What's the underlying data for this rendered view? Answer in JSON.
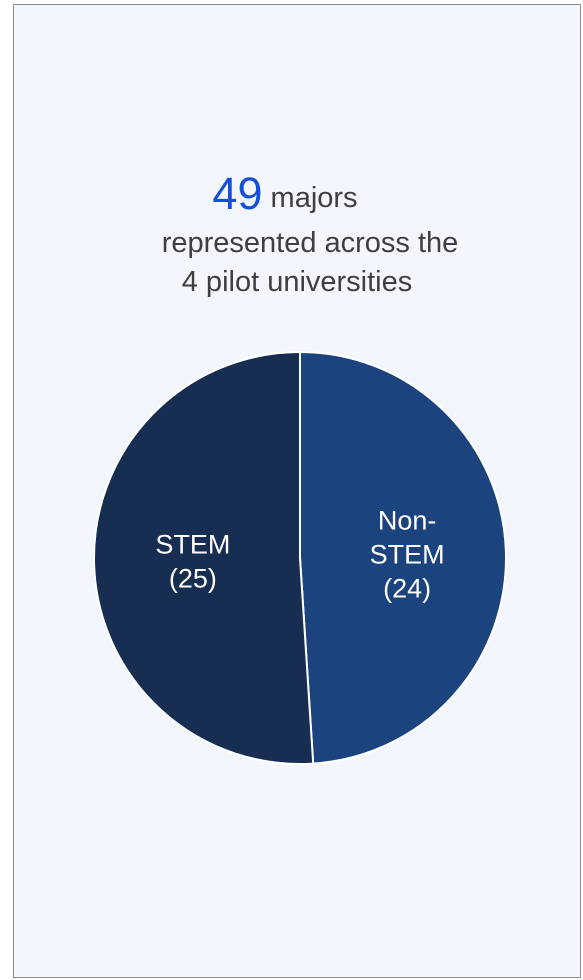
{
  "headline": {
    "number": "49",
    "unit_text": "majors",
    "line2": "represented across the",
    "line3": "4 pilot universities"
  },
  "chart_data": {
    "type": "pie",
    "slices": [
      {
        "label_line1": "Non-",
        "label_line2": "STEM",
        "count_text": "(24)",
        "value": 24,
        "color": "#1b437e"
      },
      {
        "label_line1": "STEM",
        "label_line2": "",
        "count_text": "(25)",
        "value": 25,
        "color": "#172d52"
      }
    ],
    "total": 49
  },
  "colors": {
    "accent": "#1450d8",
    "card_background": "#f3f6fc",
    "text": "#3f3f3f"
  }
}
